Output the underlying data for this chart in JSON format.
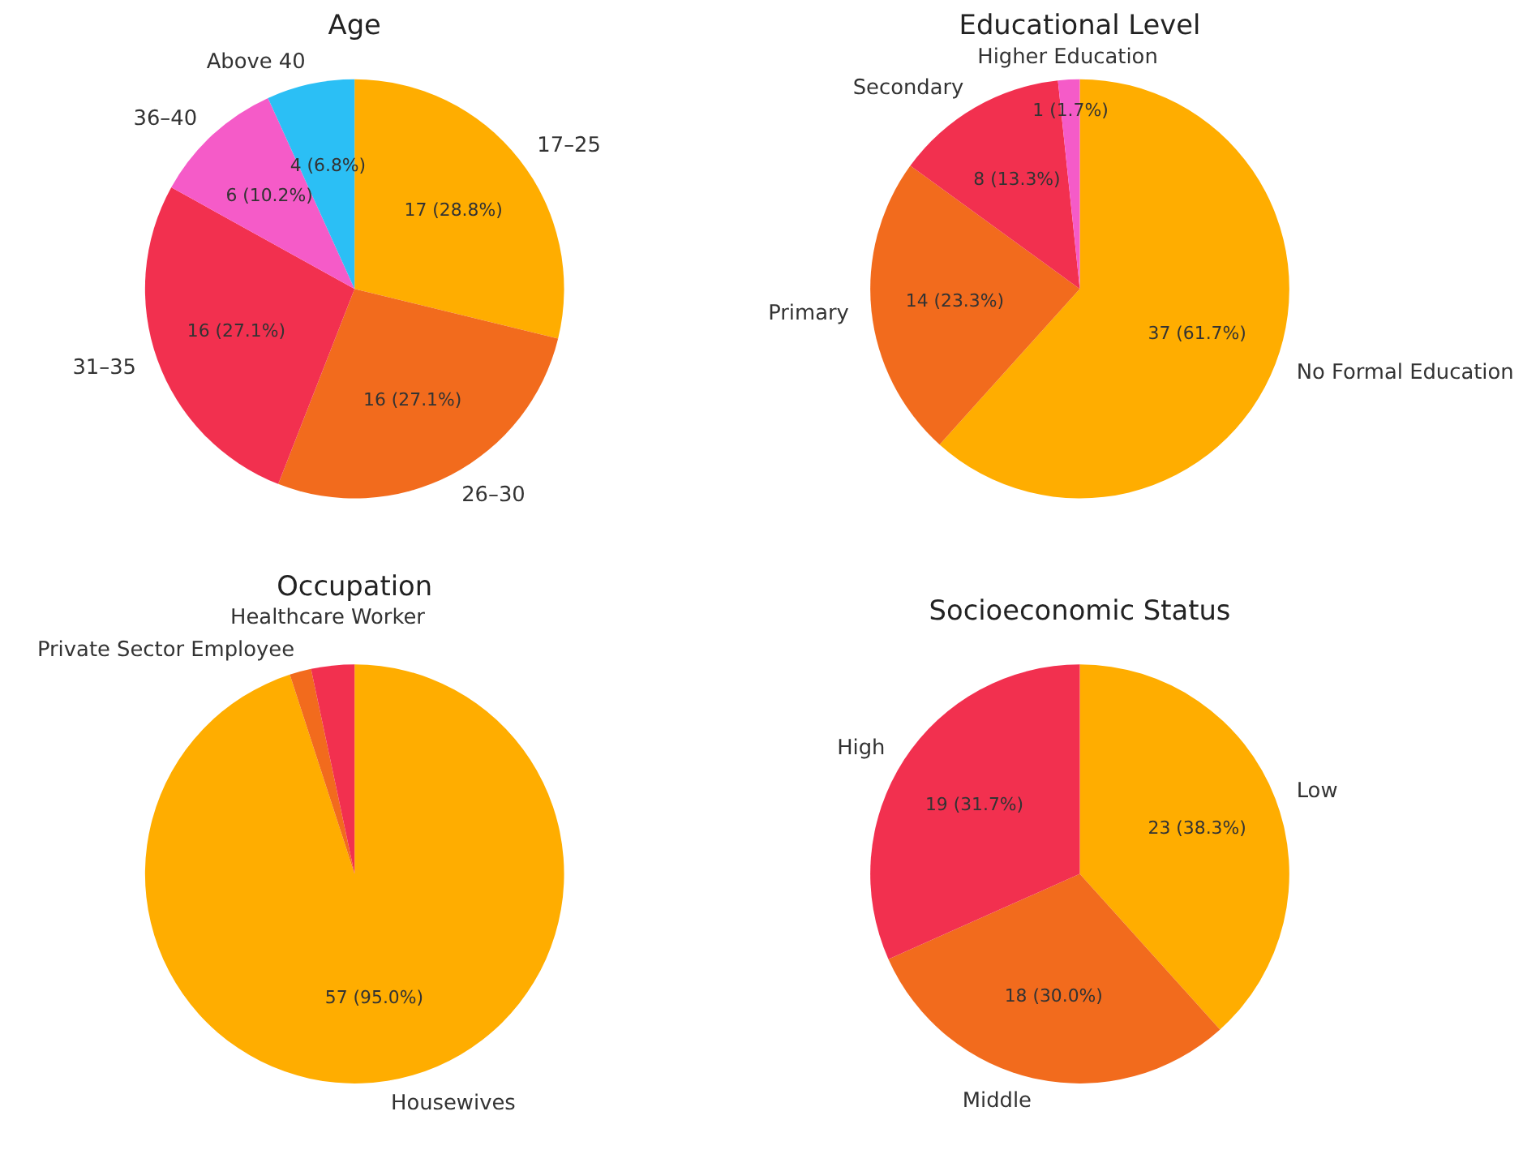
{
  "chart_data": [
    {
      "type": "pie",
      "title": "Age",
      "categories": [
        "17–25",
        "26–30",
        "31–35",
        "36–40",
        "Above 40"
      ],
      "values": [
        17,
        16,
        16,
        6,
        4
      ],
      "colors": [
        "#ffad00",
        "#f26b1d",
        "#f2304f",
        "#f55bc8",
        "#2bbff5"
      ],
      "value_labels": [
        "17 (28.8%)",
        "16 (27.1%)",
        "16 (27.1%)",
        "6 (10.2%)",
        "4 (6.8%)"
      ],
      "legend": false
    },
    {
      "type": "pie",
      "title": "Educational Level",
      "categories": [
        "No Formal Education",
        "Primary",
        "Secondary",
        "Higher Education"
      ],
      "values": [
        37,
        14,
        8,
        1
      ],
      "colors": [
        "#ffad00",
        "#f26b1d",
        "#f2304f",
        "#f55bc8"
      ],
      "value_labels": [
        "37 (61.7%)",
        "14 (23.3%)",
        "8 (13.3%)",
        "1 (1.7%)"
      ],
      "legend": false
    },
    {
      "type": "pie",
      "title": "Occupation",
      "categories": [
        "Housewives",
        "Private Sector Employee",
        "Healthcare Worker"
      ],
      "values": [
        57,
        1,
        2
      ],
      "colors": [
        "#ffad00",
        "#f26b1d",
        "#f2304f"
      ],
      "value_labels": [
        "57 (95.0%)",
        null,
        null
      ],
      "legend": false
    },
    {
      "type": "pie",
      "title": "Socioeconomic Status",
      "categories": [
        "Low",
        "Middle",
        "High"
      ],
      "values": [
        23,
        18,
        19
      ],
      "colors": [
        "#ffad00",
        "#f26b1d",
        "#f2304f"
      ],
      "value_labels": [
        "23 (38.3%)",
        "18 (30.0%)",
        "19 (31.7%)"
      ],
      "legend": false
    }
  ]
}
